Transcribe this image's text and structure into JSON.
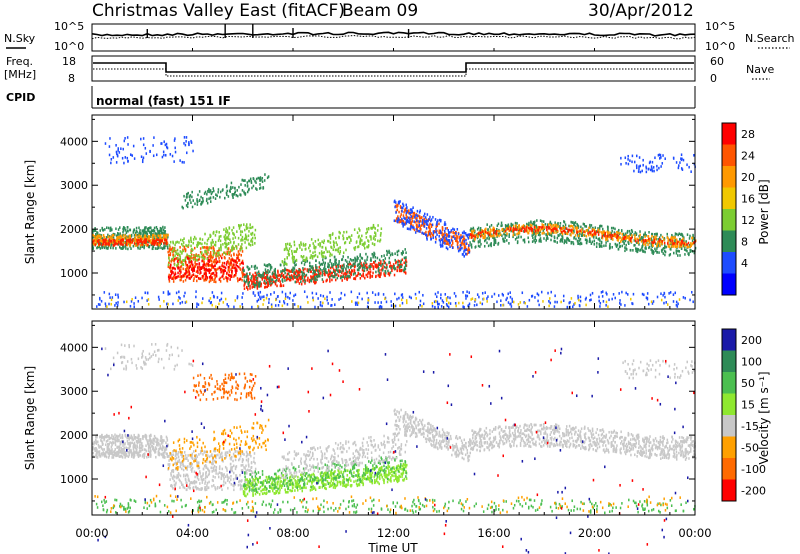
{
  "header": {
    "station": "Christmas Valley East (fitACF)",
    "beam": "Beam 09",
    "date": "30/Apr/2012"
  },
  "noise_panel": {
    "left_label": "N.Sky",
    "right_label": "N.Search",
    "left_ticks": [
      "10^5",
      "10^0"
    ],
    "right_ticks": [
      "10^5",
      "10^0"
    ]
  },
  "freq_panel": {
    "left_label_top": "Freq.",
    "left_label_bottom": "[MHz]",
    "right_label": "Nave",
    "left_ticks": [
      "18",
      "8"
    ],
    "right_ticks": [
      "60",
      "0"
    ]
  },
  "cpid": {
    "label": "CPID",
    "program": "normal (fast) 151 IF"
  },
  "chart_data": [
    {
      "type": "heatmap",
      "name": "power",
      "ylabel": "Slant Range [km]",
      "yticks": [
        "4000",
        "3000",
        "2000",
        "1000"
      ],
      "ylim": [
        180,
        4600
      ],
      "colorbar_label": "Power [dB]",
      "colorbar_ticks": [
        "28",
        "24",
        "20",
        "16",
        "12",
        "8",
        "4"
      ],
      "colorbar_colors": [
        "#ff0000",
        "#ff5500",
        "#ff9900",
        "#f0c800",
        "#7ccd32",
        "#2e8b57",
        "#1e4cff",
        "#0000ff"
      ],
      "xlim_hours": [
        0,
        24
      ]
    },
    {
      "type": "heatmap",
      "name": "velocity",
      "ylabel": "Slant Range [km]",
      "yticks": [
        "4000",
        "3000",
        "2000",
        "1000"
      ],
      "ylim": [
        180,
        4600
      ],
      "colorbar_label": "Velocity [m s⁻¹]",
      "colorbar_ticks": [
        "200",
        "100",
        "50",
        "15",
        "-15",
        "-50",
        "-100",
        "-200"
      ],
      "colorbar_colors": [
        "#1a1aa8",
        "#2e8b57",
        "#4bbf50",
        "#8fe830",
        "#c8c8c8",
        "#ffa000",
        "#ff6a00",
        "#ff0000"
      ],
      "xlim_hours": [
        0,
        24
      ]
    }
  ],
  "x_axis": {
    "label": "Time UT",
    "ticks": [
      "00:00",
      "04:00",
      "08:00",
      "12:00",
      "16:00",
      "20:00",
      "00:00"
    ]
  }
}
